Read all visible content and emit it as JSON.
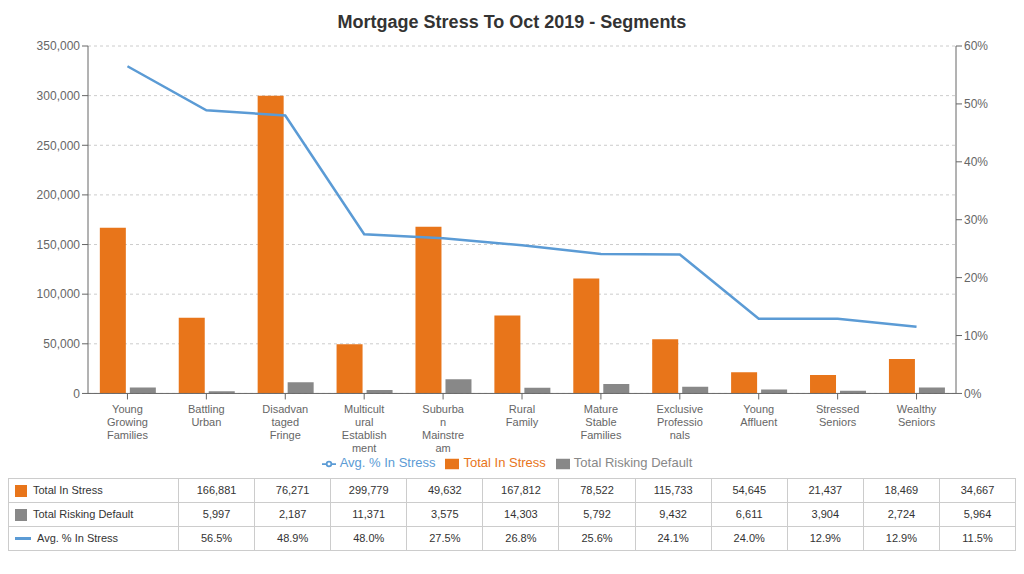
{
  "chart_data": {
    "type": "bar",
    "title": "Mortgage Stress To Oct 2019 - Segments",
    "categories": [
      "Young\nGrowing\nFamilies",
      "Battling\nUrban",
      "Disadvan\ntaged\nFringe",
      "Multicult\nural\nEstablish\nment",
      "Suburba\nn\nMainstre\nam",
      "Rural\nFamily",
      "Mature\nStable\nFamilies",
      "Exclusive\nProfessio\nnals",
      "Young\nAffluent",
      "Stressed\nSeniors",
      "Wealthy\nSeniors"
    ],
    "series": [
      {
        "name": "Total In Stress",
        "type": "bar",
        "color": "#E8751A",
        "values": [
          166881,
          76271,
          299779,
          49632,
          167812,
          78522,
          115733,
          54645,
          21437,
          18469,
          34667
        ],
        "value_labels": [
          "166,881",
          "76,271",
          "299,779",
          "49,632",
          "167,812",
          "78,522",
          "115,733",
          "54,645",
          "21,437",
          "18,469",
          "34,667"
        ]
      },
      {
        "name": "Total Risking Default",
        "type": "bar",
        "color": "#888888",
        "values": [
          5997,
          2187,
          11371,
          3575,
          14303,
          5792,
          9432,
          6611,
          3904,
          2724,
          5964
        ],
        "value_labels": [
          "5,997",
          "2,187",
          "11,371",
          "3,575",
          "14,303",
          "5,792",
          "9,432",
          "6,611",
          "3,904",
          "2,724",
          "5,964"
        ]
      },
      {
        "name": "Avg. % In Stress",
        "type": "line",
        "axis": "y2",
        "color": "#5B9BD5",
        "values": [
          0.565,
          0.489,
          0.48,
          0.275,
          0.268,
          0.256,
          0.241,
          0.24,
          0.129,
          0.129,
          0.115
        ],
        "value_labels": [
          "56.5%",
          "48.9%",
          "48.0%",
          "27.5%",
          "26.8%",
          "25.6%",
          "24.1%",
          "24.0%",
          "12.9%",
          "12.9%",
          "11.5%"
        ]
      }
    ],
    "ylim": [
      0,
      350000
    ],
    "yticks": [
      0,
      {
        "value": 50000,
        "label": "50,000"
      },
      {
        "value": 100000,
        "label": "100,000"
      },
      {
        "value": 150000,
        "label": "150,000"
      },
      {
        "value": 200000,
        "label": "200,000"
      },
      {
        "value": 250000,
        "label": "250,000"
      },
      {
        "value": 300000,
        "label": "300,000"
      },
      {
        "value": 350000,
        "label": "350,000"
      }
    ],
    "y2lim": [
      0,
      0.6
    ],
    "y2ticks": [
      {
        "value": 0,
        "label": "0%"
      },
      {
        "value": 0.1,
        "label": "10%"
      },
      {
        "value": 0.2,
        "label": "20%"
      },
      {
        "value": 0.3,
        "label": "30%"
      },
      {
        "value": 0.4,
        "label": "40%"
      },
      {
        "value": 0.5,
        "label": "50%"
      },
      {
        "value": 0.6,
        "label": "60%"
      }
    ],
    "grid": true,
    "legend": "bottom"
  }
}
